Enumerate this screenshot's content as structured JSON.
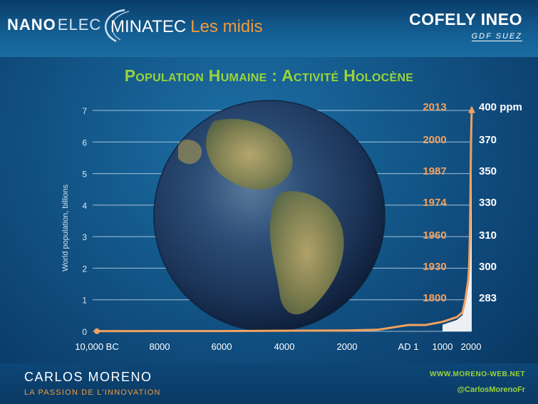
{
  "header": {
    "logo_nano": "NANO",
    "logo_elec": "ELEC",
    "logo_minatec": "MINATEC",
    "logo_midis": "Les midis",
    "logo_cofely": "COFELY INEO",
    "logo_gdf": "GDF SUEZ"
  },
  "title": "Population Humaine : Activité Holocène",
  "footer": {
    "author": "CARLOS MORENO",
    "tagline": "LA PASSION DE L'INNOVATION",
    "website": "WWW.MORENO-WEB.NET",
    "twitter": "@CarlosMorenoFr"
  },
  "colors": {
    "curve": "#f2a160",
    "year_label": "#f2a160",
    "title": "#9ad43a",
    "ppm_label": "#ffffff"
  },
  "chart_data": {
    "type": "line",
    "title": "",
    "xlabel": "",
    "ylabel": "World population, billions",
    "x_tick_labels": [
      "10,000 BC",
      "8000",
      "6000",
      "4000",
      "2000",
      "AD 1",
      "1000",
      "2000"
    ],
    "y_tick_labels": [
      "0",
      "1",
      "2",
      "3",
      "4",
      "5",
      "6",
      "7"
    ],
    "ylim": [
      0,
      7
    ],
    "grid": true,
    "series": [
      {
        "x": [
          -10000,
          -8000,
          -6000,
          -4000,
          -2000,
          -1000,
          1,
          500,
          1000,
          1500,
          1700,
          1800,
          1900,
          1930,
          1960,
          1974,
          1987,
          2000,
          2013
        ],
        "values": [
          0.004,
          0.01,
          0.01,
          0.02,
          0.03,
          0.05,
          0.2,
          0.2,
          0.3,
          0.45,
          0.6,
          1.0,
          1.6,
          2.0,
          3.0,
          4.0,
          5.0,
          6.0,
          7.1
        ]
      }
    ],
    "annotations": [
      {
        "year": "1800",
        "population": 1.0,
        "co2": "283"
      },
      {
        "year": "1930",
        "population": 2.0,
        "co2": "300"
      },
      {
        "year": "1960",
        "population": 3.0,
        "co2": "310"
      },
      {
        "year": "1974",
        "population": 4.0,
        "co2": "330"
      },
      {
        "year": "1987",
        "population": 5.0,
        "co2": "350"
      },
      {
        "year": "2000",
        "population": 6.0,
        "co2": "370"
      },
      {
        "year": "2013",
        "population": 7.0,
        "co2": "400 ppm"
      }
    ]
  }
}
